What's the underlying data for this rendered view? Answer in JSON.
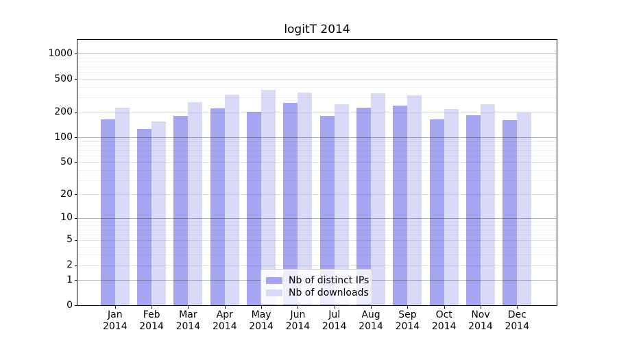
{
  "title": "logitT 2014",
  "chart_data": {
    "type": "bar",
    "title": "logitT 2014",
    "xlabel": "",
    "ylabel": "",
    "y_scale": "log10(1+v)",
    "categories": [
      "Jan 2014",
      "Feb 2014",
      "Mar 2014",
      "Apr 2014",
      "May 2014",
      "Jun 2014",
      "Jul 2014",
      "Aug 2014",
      "Sep 2014",
      "Oct 2014",
      "Nov 2014",
      "Dec 2014"
    ],
    "series": [
      {
        "name": "Nb of distinct IPs",
        "color": "#a4a4f0",
        "values": [
          165,
          125,
          180,
          222,
          202,
          258,
          181,
          228,
          240,
          165,
          185,
          162
        ]
      },
      {
        "name": "Nb of downloads",
        "color": "#d9d9f8",
        "values": [
          225,
          155,
          265,
          322,
          370,
          342,
          248,
          335,
          318,
          220,
          250,
          199
        ]
      }
    ],
    "y_ticks": [
      0,
      1,
      2,
      5,
      10,
      20,
      50,
      100,
      200,
      500,
      1000
    ],
    "y_tick_labels": [
      "0",
      "1",
      "2",
      "5",
      "10",
      "20",
      "50",
      "100",
      "200",
      "500",
      "1000"
    ],
    "y_minor_gridlines": [
      3,
      4,
      6,
      7,
      8,
      9,
      30,
      40,
      60,
      70,
      80,
      90,
      300,
      400,
      600,
      700,
      800,
      900
    ],
    "ylim": [
      0,
      1460
    ],
    "grid": "both",
    "legend_position": "lower center"
  },
  "legend": {
    "items": [
      {
        "label": "Nb of distinct IPs",
        "color": "#a4a4f0"
      },
      {
        "label": "Nb of downloads",
        "color": "#d9d9f8"
      }
    ]
  },
  "colors": {
    "bar_dark": "#a4a4f0",
    "bar_light": "#d9d9f8",
    "grid_major": "rgba(0,0,0,0.30)",
    "grid_minor_labeled": "rgba(0,0,0,0.12)",
    "grid_minor_faint": "rgba(0,0,0,0.055)",
    "legend_border": "#cccccc",
    "axis": "#000000"
  }
}
